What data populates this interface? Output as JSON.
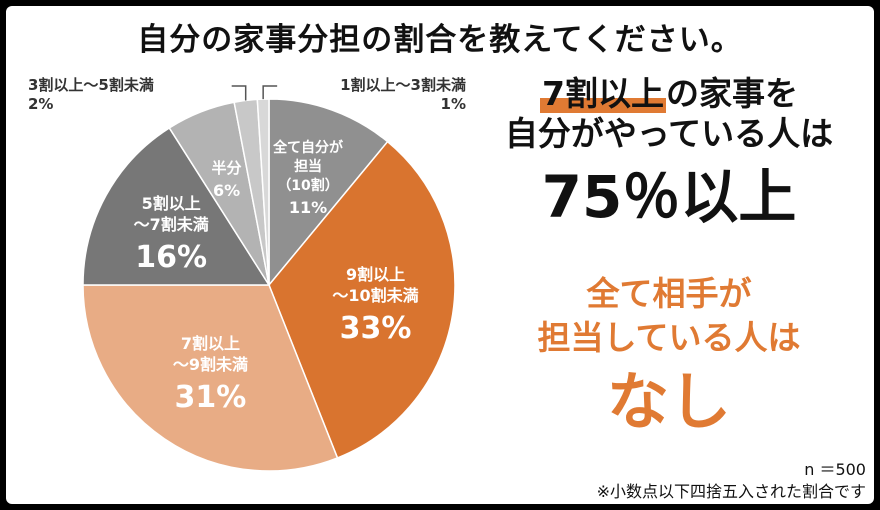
{
  "header": {
    "title": "自分の家事分担の割合を教えてください。"
  },
  "chart_data": {
    "type": "pie",
    "title": "自分の家事分担の割合を教えてください。",
    "start": "12 o'clock, clockwise",
    "slices": [
      {
        "label_lines": [
          "全て自分が",
          "担当",
          "（10割）"
        ],
        "value": 11,
        "pct_text": "11%",
        "color": "#909090",
        "label_position": "inside"
      },
      {
        "label_lines": [
          "9割以上",
          "～10割未満"
        ],
        "value": 33,
        "pct_text": "33%",
        "color": "#d9742f",
        "label_position": "inside"
      },
      {
        "label_lines": [
          "7割以上",
          "～9割未満"
        ],
        "value": 31,
        "pct_text": "31%",
        "color": "#e8ac85",
        "label_position": "inside"
      },
      {
        "label_lines": [
          "5割以上",
          "～7割未満"
        ],
        "value": 16,
        "pct_text": "16%",
        "color": "#777777",
        "label_position": "inside"
      },
      {
        "label_lines": [
          "半分"
        ],
        "value": 6,
        "pct_text": "6%",
        "color": "#b3b3b3",
        "label_position": "inside"
      },
      {
        "label_lines": [
          "3割以上～5割未満"
        ],
        "value": 2,
        "pct_text": "2%",
        "color": "#c8c8c8",
        "label_position": "outside-left"
      },
      {
        "label_lines": [
          "1割以上～3割未満"
        ],
        "value": 1,
        "pct_text": "1%",
        "color": "#d8d8d8",
        "label_position": "outside-right"
      }
    ],
    "sample_size": "n ＝500",
    "note": "※小数点以下四捨五入された割合です"
  },
  "headline": {
    "line1_highlight": "7割以上",
    "line1_rest": "の家事を",
    "line2": "自分がやっている人は",
    "line3": "75％以上"
  },
  "subheadline": {
    "line1": "全て相手が",
    "line2": "担当している人は",
    "line3": "なし"
  }
}
